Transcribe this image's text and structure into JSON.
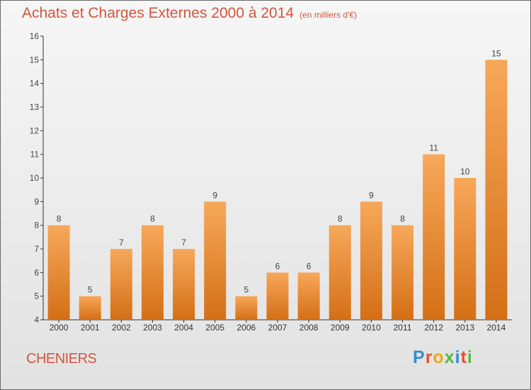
{
  "header": {
    "title": "Achats et Charges Externes 2000 à 2014",
    "subtitle": "(en milliers d'€)"
  },
  "footer": {
    "commune": "CHENIERS",
    "brand_letters": [
      "P",
      "r",
      "o",
      "x",
      "i",
      "t",
      "i"
    ],
    "brand_colors": [
      "#2e8fd8",
      "#e8532d",
      "#f2a51c",
      "#57b947",
      "#2e8fd8",
      "#e8532d",
      "#57b947"
    ]
  },
  "colors": {
    "bar_light": "#f7a85a",
    "bar_dark": "#d46f16",
    "text": "#d2563f",
    "axis": "#333333"
  },
  "chart_data": {
    "type": "bar",
    "categories": [
      "2000",
      "2001",
      "2002",
      "2003",
      "2004",
      "2005",
      "2006",
      "2007",
      "2008",
      "2009",
      "2010",
      "2011",
      "2012",
      "2013",
      "2014"
    ],
    "values": [
      8,
      5,
      7,
      8,
      7,
      9,
      5,
      6,
      6,
      8,
      9,
      8,
      11,
      10,
      15
    ],
    "title": "Achats et Charges Externes 2000 à 2014",
    "subtitle": "(en milliers d'€)",
    "xlabel": "",
    "ylabel": "",
    "ylim": [
      4,
      16
    ],
    "yticks": [
      4,
      5,
      6,
      7,
      8,
      9,
      10,
      11,
      12,
      13,
      14,
      15,
      16
    ],
    "grid": false,
    "data_labels": true
  }
}
